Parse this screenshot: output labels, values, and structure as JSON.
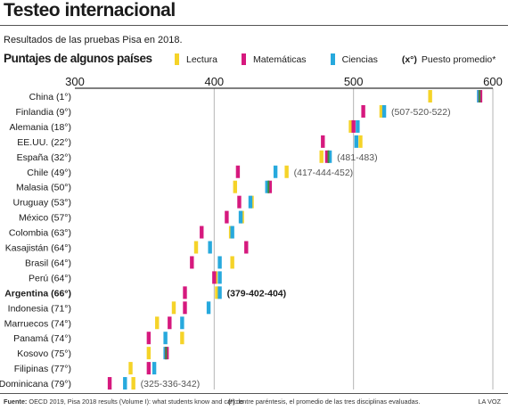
{
  "header": {
    "title": "Testeo internacional",
    "subtitle": "Resultados de las pruebas Pisa en 2018.",
    "chart_heading": "Puntajes de algunos países"
  },
  "legend": {
    "lectura": "Lectura",
    "matematicas": "Matemáticas",
    "ciencias": "Ciencias",
    "rank_key": "(x°)",
    "rank_label": "Puesto promedio*"
  },
  "colors": {
    "lectura": "#f5d328",
    "matematicas": "#d6197e",
    "ciencias": "#27a9dd",
    "overlap": "#3a8d3e",
    "gridline": "#b5b5b5",
    "axis": "#333333"
  },
  "chart_data": {
    "type": "strip",
    "xlim": [
      300,
      600
    ],
    "xticks": [
      300,
      400,
      500,
      600
    ],
    "categories": [
      "China (1°)",
      "Finlandia (9°)",
      "Alemania (18°)",
      "EE.UU. (22°)",
      "España (32°)",
      "Chile (49°)",
      "Malasia (50°)",
      "Uruguay (53°)",
      "México (57°)",
      "Colombia (63°)",
      "Kasajistán (64°)",
      "Brasil (64°)",
      "Perú (64°)",
      "Argentina (66°)",
      "Indonesia (71°)",
      "Marruecos (74°)",
      "Panamá (74°)",
      "Kosovo (75°)",
      "Filipinas (77°)",
      "R. Dominicana (79°)"
    ],
    "highlight": "Argentina (66°)",
    "series": [
      {
        "name": "Lectura",
        "values": [
          555,
          520,
          498,
          505,
          477,
          452,
          415,
          427,
          420,
          412,
          387,
          413,
          401,
          402,
          371,
          359,
          377,
          353,
          340,
          342
        ]
      },
      {
        "name": "Matemáticas",
        "values": [
          591,
          507,
          500,
          478,
          481,
          417,
          440,
          418,
          409,
          391,
          423,
          384,
          400,
          379,
          379,
          368,
          353,
          366,
          353,
          325
        ]
      },
      {
        "name": "Ciencias",
        "values": [
          590,
          522,
          503,
          502,
          483,
          444,
          438,
          426,
          419,
          413,
          397,
          404,
          404,
          404,
          396,
          377,
          365,
          365,
          357,
          336
        ]
      }
    ],
    "annotations": [
      {
        "category": "Finlandia (9°)",
        "text": "(507-520-522)"
      },
      {
        "category": "España (32°)",
        "text": "(481-483)"
      },
      {
        "category": "Chile (49°)",
        "text": "(417-444-452)"
      },
      {
        "category": "Argentina (66°)",
        "text": "(379-402-404)"
      },
      {
        "category": "R. Dominicana (79°)",
        "text": "(325-336-342)"
      }
    ]
  },
  "footer": {
    "source_label": "Fuente:",
    "source_text": "OECD 2019, Pisa 2018 results (Volume I): what students know and can do",
    "note_key": "(*):",
    "note_text": "entre paréntesis, el promedio de las tres disciplinas evaluadas.",
    "brand": "LA VOZ"
  }
}
